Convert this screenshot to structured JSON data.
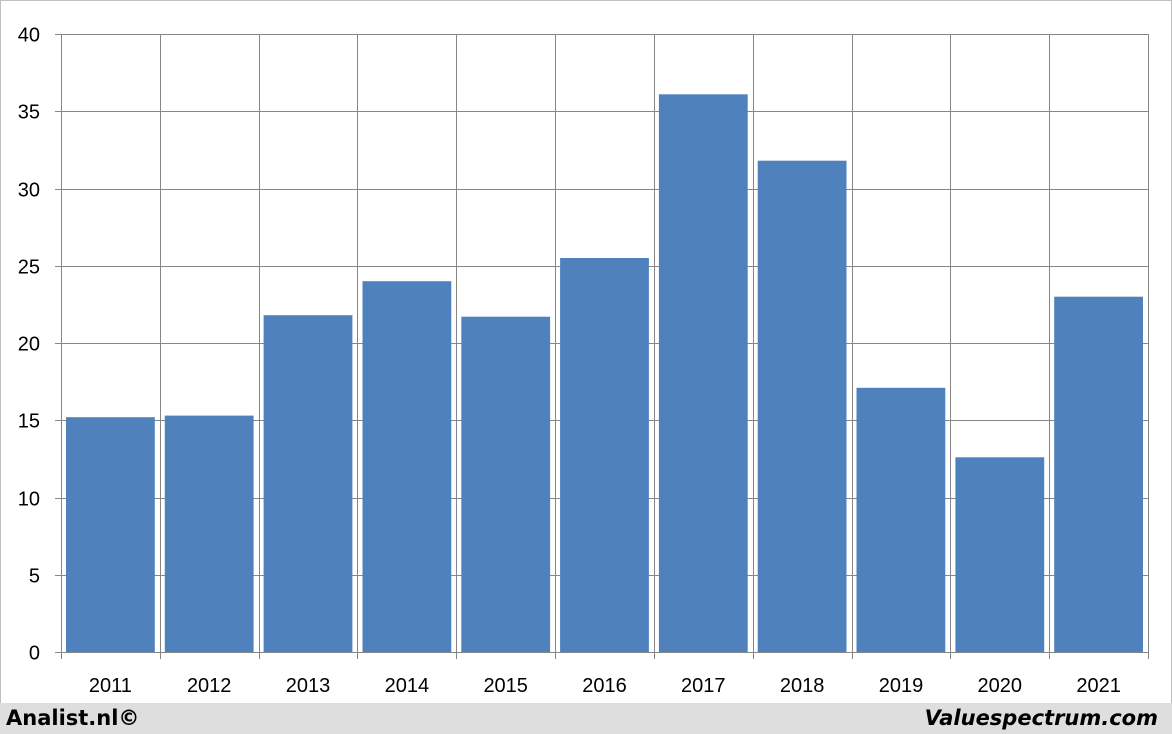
{
  "chart_data": {
    "type": "bar",
    "categories": [
      "2011",
      "2012",
      "2013",
      "2014",
      "2015",
      "2016",
      "2017",
      "2018",
      "2019",
      "2020",
      "2021"
    ],
    "values": [
      15.2,
      15.3,
      21.8,
      24.0,
      21.7,
      25.5,
      36.1,
      31.8,
      17.1,
      12.6,
      23.0
    ],
    "ylim": [
      0,
      40
    ],
    "yticks": [
      0,
      5,
      10,
      15,
      20,
      25,
      30,
      35,
      40
    ],
    "grid": true,
    "title": "",
    "xlabel": "",
    "ylabel": "",
    "colors": {
      "bar": "#4f81bd",
      "grid": "#868686",
      "axis": "#868686",
      "frame": "#c0c0c0",
      "footer_bg": "#dedede"
    }
  },
  "footer": {
    "left_text": "Analist.nl©",
    "right_text": "Valuespectrum.com"
  }
}
